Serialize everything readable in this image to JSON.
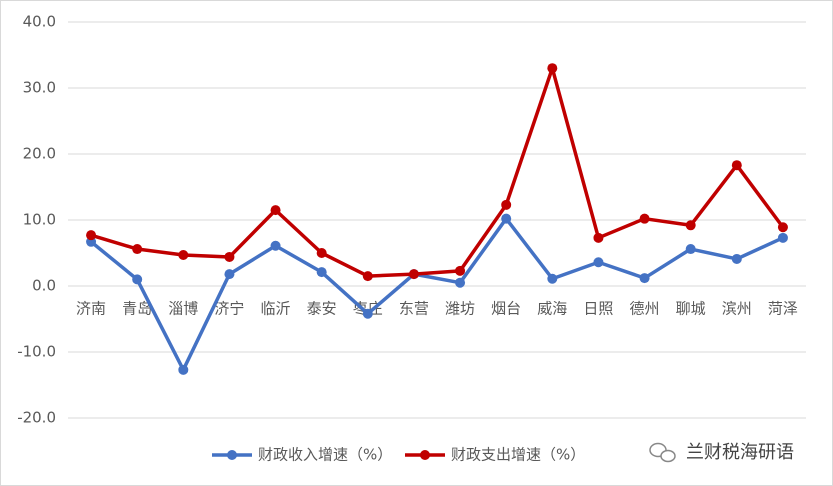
{
  "chart_data": {
    "type": "line",
    "categories": [
      "济南",
      "青岛",
      "淄博",
      "济宁",
      "临沂",
      "泰安",
      "枣庄",
      "东营",
      "潍坊",
      "烟台",
      "威海",
      "日照",
      "德州",
      "聊城",
      "滨州",
      "菏泽"
    ],
    "series": [
      {
        "name": "财政收入增速（%）",
        "color": "#4472c4",
        "values": [
          6.7,
          1.0,
          -12.7,
          1.8,
          6.1,
          2.1,
          -4.2,
          1.8,
          0.5,
          10.2,
          1.1,
          3.6,
          1.2,
          5.6,
          4.1,
          7.3
        ]
      },
      {
        "name": "财政支出增速（%）",
        "color": "#c00000",
        "values": [
          7.7,
          5.6,
          4.7,
          4.4,
          11.5,
          5.0,
          1.5,
          1.8,
          2.3,
          12.3,
          33.0,
          7.3,
          10.2,
          9.2,
          18.3,
          8.9
        ]
      }
    ],
    "ylim": [
      -20,
      40
    ],
    "yticks": [
      {
        "value": -20,
        "label": "-20.0"
      },
      {
        "value": -10,
        "label": "-10.0"
      },
      {
        "value": 0,
        "label": "0.0"
      },
      {
        "value": 10,
        "label": "10.0"
      },
      {
        "value": 20,
        "label": "20.0"
      },
      {
        "value": 30,
        "label": "30.0"
      },
      {
        "value": 40,
        "label": "40.0"
      }
    ],
    "grid": true,
    "legend": "bottom",
    "annotations": [
      "兰财税海研语"
    ]
  }
}
